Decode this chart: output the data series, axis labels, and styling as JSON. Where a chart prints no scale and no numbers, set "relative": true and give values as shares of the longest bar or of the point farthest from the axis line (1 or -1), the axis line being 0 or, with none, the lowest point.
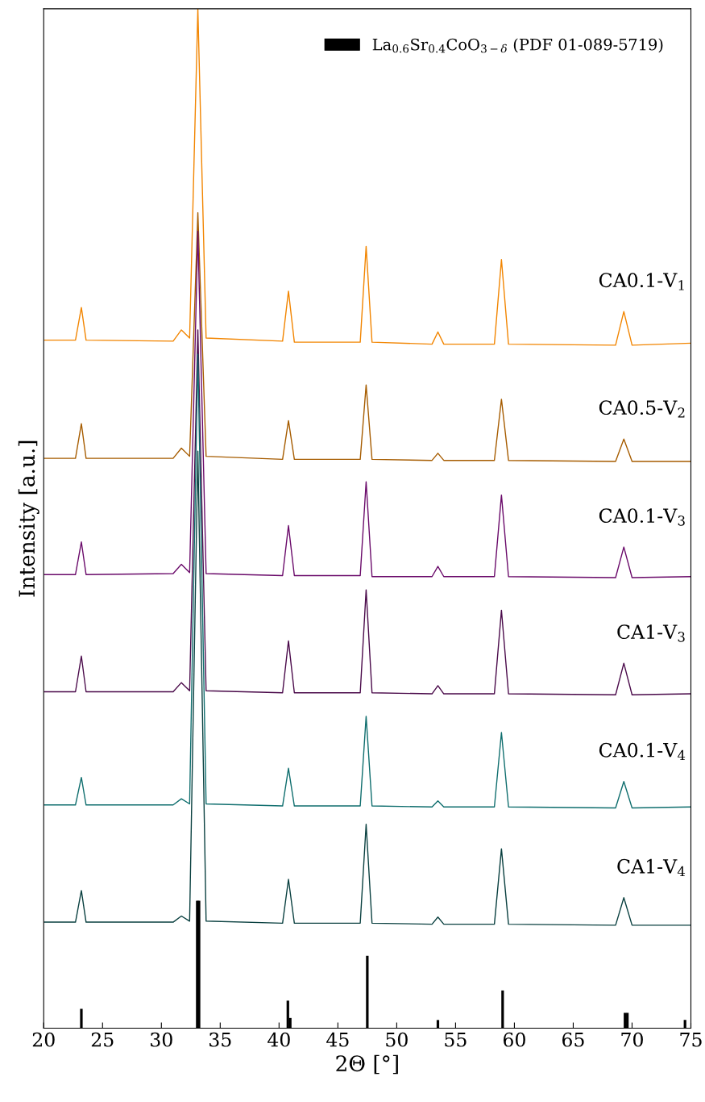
{
  "chart_data": {
    "type": "line",
    "xlabel": "2Θ [°]",
    "ylabel": "Intensity [a.u.]",
    "relative": true,
    "tick_labels": "x",
    "xlim": [
      20,
      75
    ],
    "xticks": [
      20,
      25,
      30,
      35,
      40,
      45,
      50,
      55,
      60,
      65,
      70,
      75
    ],
    "grid": false,
    "legend": "top right",
    "x": [
      20,
      22.7,
      23.2,
      23.6,
      31.0,
      31.7,
      32.4,
      33.1,
      33.8,
      40.3,
      40.8,
      41.3,
      46.9,
      47.4,
      47.9,
      53.0,
      53.5,
      54.0,
      58.3,
      58.9,
      59.5,
      68.6,
      69.3,
      70.0,
      75
    ],
    "series": [
      {
        "name": "CA0.1-V$_{1}$",
        "color": "#f28500",
        "values": [
          0.675,
          0.675,
          0.707,
          0.675,
          0.674,
          0.685,
          0.677,
          1.0,
          0.677,
          0.674,
          0.723,
          0.673,
          0.673,
          0.767,
          0.673,
          0.671,
          0.683,
          0.671,
          0.671,
          0.754,
          0.671,
          0.67,
          0.703,
          0.67,
          0.672
        ]
      },
      {
        "name": "CA0.5-V$_{2}$",
        "color": "#a65c00",
        "values": [
          0.559,
          0.559,
          0.593,
          0.559,
          0.559,
          0.569,
          0.561,
          0.8,
          0.561,
          0.558,
          0.596,
          0.558,
          0.558,
          0.631,
          0.558,
          0.557,
          0.564,
          0.557,
          0.557,
          0.617,
          0.557,
          0.556,
          0.578,
          0.556,
          0.556
        ]
      },
      {
        "name": "CA0.1-V$_{3}$",
        "color": "#6a0a6a",
        "values": [
          0.445,
          0.445,
          0.477,
          0.445,
          0.446,
          0.455,
          0.447,
          0.782,
          0.446,
          0.444,
          0.493,
          0.444,
          0.444,
          0.536,
          0.443,
          0.443,
          0.453,
          0.443,
          0.443,
          0.523,
          0.443,
          0.442,
          0.472,
          0.442,
          0.443
        ]
      },
      {
        "name": "CA1-V$_{3}$",
        "color": "#4a0a4a",
        "values": [
          0.33,
          0.33,
          0.365,
          0.33,
          0.33,
          0.339,
          0.331,
          0.685,
          0.331,
          0.329,
          0.38,
          0.329,
          0.329,
          0.43,
          0.329,
          0.328,
          0.336,
          0.328,
          0.328,
          0.41,
          0.328,
          0.327,
          0.358,
          0.327,
          0.328
        ]
      },
      {
        "name": "CA0.1-V$_{4}$",
        "color": "#0f6e6e",
        "values": [
          0.219,
          0.219,
          0.246,
          0.219,
          0.219,
          0.225,
          0.22,
          0.661,
          0.22,
          0.218,
          0.255,
          0.218,
          0.218,
          0.306,
          0.218,
          0.217,
          0.223,
          0.217,
          0.217,
          0.29,
          0.217,
          0.216,
          0.242,
          0.216,
          0.217
        ]
      },
      {
        "name": "CA1-V$_{4}$",
        "color": "#0a4040",
        "values": [
          0.104,
          0.104,
          0.135,
          0.104,
          0.104,
          0.11,
          0.105,
          0.566,
          0.105,
          0.103,
          0.146,
          0.103,
          0.103,
          0.2,
          0.103,
          0.102,
          0.109,
          0.102,
          0.102,
          0.176,
          0.102,
          0.101,
          0.128,
          0.101,
          0.101
        ]
      },
      {
        "name": "La$_{0.6}$Sr$_{0.4}$CoO$_{3−δ}$ (PDF 01-089-5719)",
        "type": "bar",
        "color": "#000000",
        "x": [
          23.2,
          33.05,
          33.2,
          40.75,
          40.95,
          47.5,
          53.5,
          59.0,
          69.4,
          69.6,
          74.5
        ],
        "values": [
          0.019,
          0.125,
          0.125,
          0.027,
          0.01,
          0.071,
          0.008,
          0.037,
          0.015,
          0.015,
          0.008
        ]
      }
    ]
  }
}
